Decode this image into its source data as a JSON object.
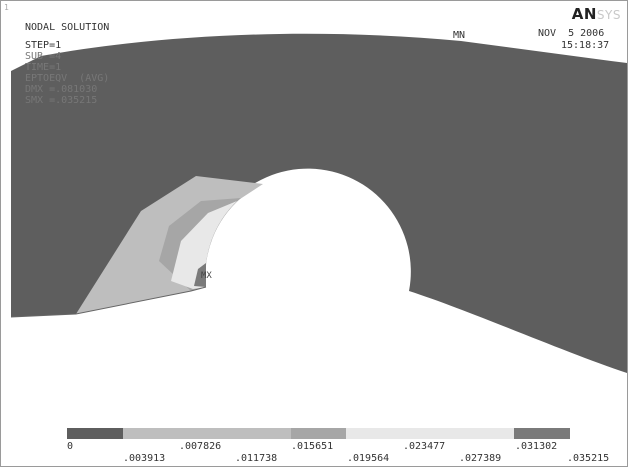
{
  "window": {
    "corner_number": "1"
  },
  "header": {
    "title": "NODAL SOLUTION",
    "lines": [
      "STEP=1",
      "SUB =4",
      "TIME=1",
      "EPTOEQV  (AVG)",
      "DMX =.081030",
      "SMX =.035215"
    ],
    "min_marker": "MN",
    "date": "NOV  5 2006",
    "time": "15:18:37",
    "brand_bold": "AN",
    "brand_faint": "SYS"
  },
  "plot": {
    "max_marker": "MX",
    "colors": {
      "shell": "#5e5e5e",
      "band1": "#bebebe",
      "band2": "#a6a6a6",
      "band3": "#e8e8e8",
      "band4": "#7a7a7a",
      "hole": "#ffffff"
    }
  },
  "legend": {
    "colors": [
      "#5e5e5e",
      "#bebebe",
      "#bebebe",
      "#bebebe",
      "#a6a6a6",
      "#e8e8e8",
      "#e8e8e8",
      "#e8e8e8",
      "#7a7a7a"
    ],
    "top_labels": [
      "0",
      ".007826",
      ".015651",
      ".023477",
      ".031302"
    ],
    "bottom_labels": [
      ".003913",
      ".011738",
      ".019564",
      ".027389",
      ".035215"
    ]
  }
}
